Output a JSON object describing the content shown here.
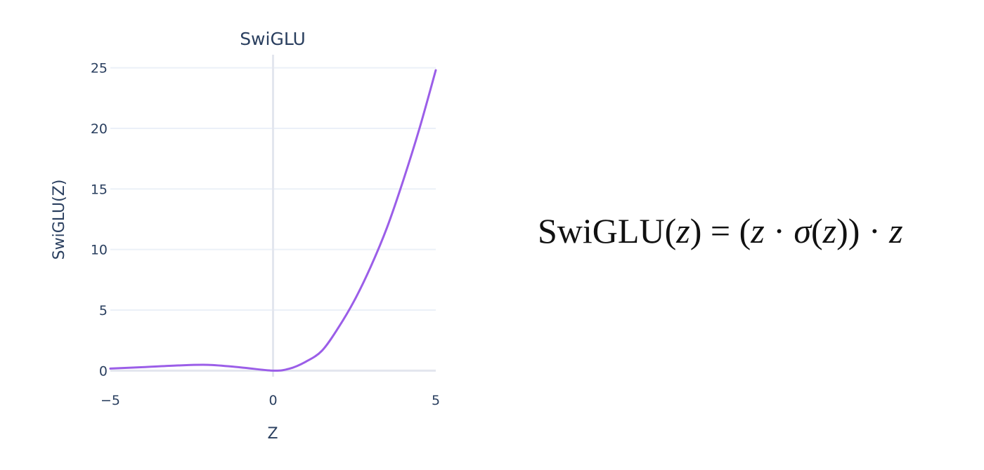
{
  "chart_data": {
    "type": "line",
    "title": "SwiGLU",
    "xlabel": "Z",
    "ylabel": "SwiGLU(Z)",
    "xlim": [
      -5,
      5
    ],
    "ylim": [
      -0.5,
      25.5
    ],
    "grid": true,
    "legend": "none",
    "x_ticks": [
      -5,
      0,
      5
    ],
    "x_tick_labels": [
      "−5",
      "0",
      "5"
    ],
    "y_ticks": [
      0,
      5,
      10,
      15,
      20,
      25
    ],
    "y_tick_labels": [
      "0",
      "5",
      "10",
      "15",
      "20",
      "25"
    ],
    "series": [
      {
        "color": "#9b5ee8",
        "x": [
          -5,
          -4,
          -3,
          -2,
          -1,
          0,
          0.5,
          1,
          1.5,
          2,
          2.5,
          3,
          3.5,
          4,
          4.5,
          5
        ],
        "y": [
          0.17,
          0.29,
          0.42,
          0.48,
          0.27,
          0,
          0.16,
          0.73,
          1.64,
          3.52,
          5.8,
          8.57,
          11.8,
          15.7,
          20.0,
          24.8
        ]
      }
    ]
  },
  "formula": {
    "fn": "SwiGLU",
    "open1": "(",
    "z1": "z",
    "close1": ")",
    "eq": " = ",
    "open2": "(",
    "z2": "z",
    "dot1": " · ",
    "sigma": "σ",
    "open3": "(",
    "z3": "z",
    "close3": ")",
    "close2": ")",
    "dot2": " · ",
    "z4": "z"
  }
}
